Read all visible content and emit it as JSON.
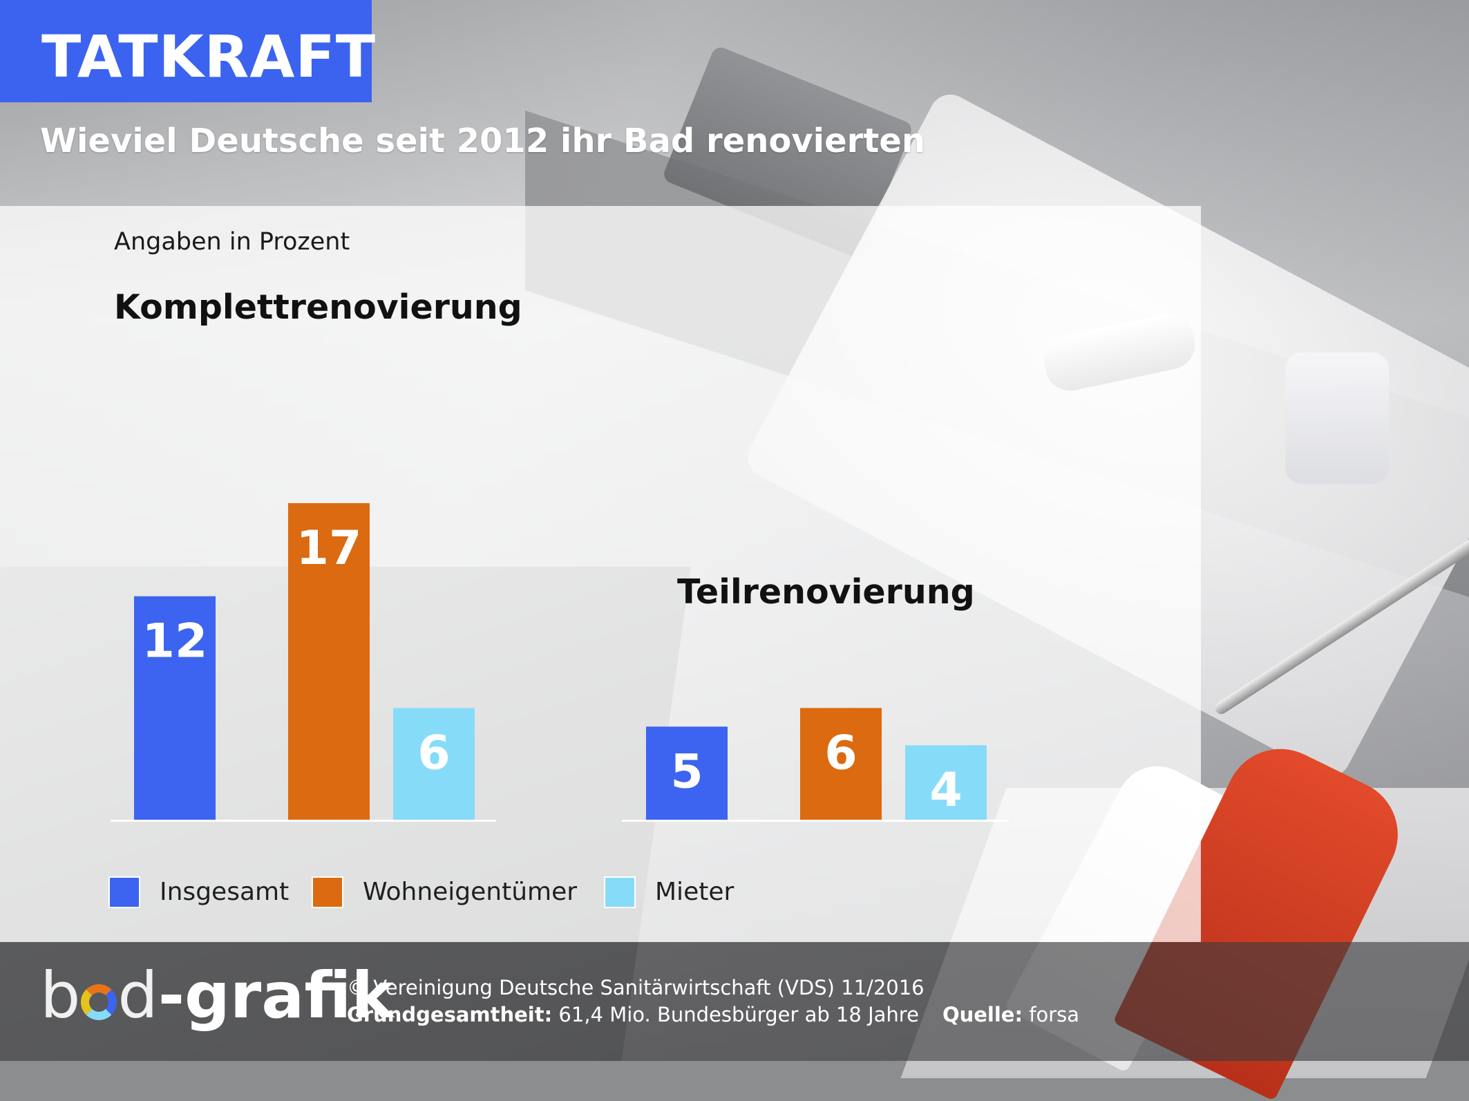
{
  "header": {
    "badge": "TATKRAFT",
    "title": "Wieviel Deutsche seit 2012 ihr Bad renovierten"
  },
  "chart": {
    "unit_note": "Angaben in Prozent",
    "legend": [
      {
        "label": "Insgesamt",
        "color": "#3c64f0"
      },
      {
        "label": "Wohneigentümer",
        "color": "#dc6a10"
      },
      {
        "label": "Mieter",
        "color": "#86dcf8"
      }
    ]
  },
  "chart_data": [
    {
      "type": "bar",
      "title": "Komplettrenovierung",
      "categories": [
        "Insgesamt",
        "Wohneigentümer",
        "Mieter"
      ],
      "values": [
        12,
        17,
        6
      ],
      "ylabel": "Angaben in Prozent",
      "grid": false,
      "legend_position": "bottom-left"
    },
    {
      "type": "bar",
      "title": "Teilrenovierung",
      "categories": [
        "Insgesamt",
        "Wohneigentümer",
        "Mieter"
      ],
      "values": [
        5,
        6,
        4
      ],
      "ylabel": "Angaben in Prozent",
      "grid": false,
      "legend_position": "bottom-left"
    }
  ],
  "footer": {
    "logo_part1": "b",
    "logo_part2": "d",
    "logo_part3": "-grafik",
    "copyright": "© Vereinigung Deutsche Sanitärwirtschaft (VDS)  11/2016",
    "population_label": "Grundgesamtheit:",
    "population_value": " 61,4 Mio. Bundesbürger ab 18 Jahre",
    "source_label": "Quelle:",
    "source_value": " forsa"
  }
}
